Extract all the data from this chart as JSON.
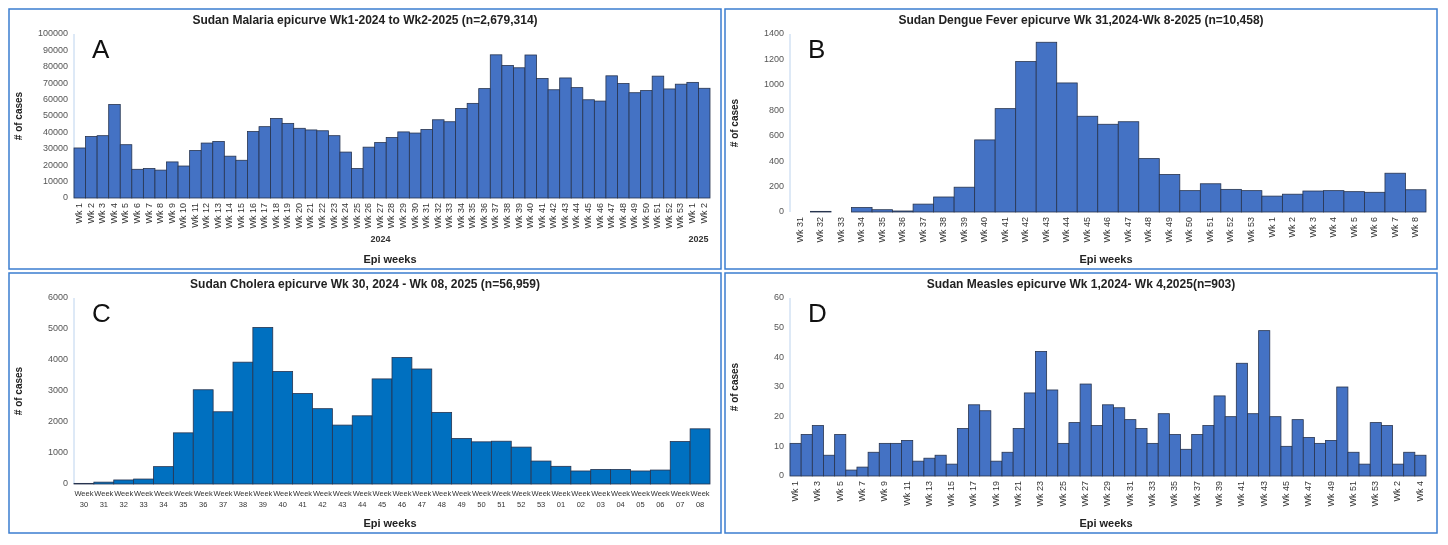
{
  "chart_data": [
    {
      "type": "bar",
      "title": "Sudan Malaria epicurve Wk1-2024 to Wk2-2025 (n=2,679,314)",
      "xlabel": "Epi weeks",
      "ylabel": "# of cases",
      "color": "#4472c4",
      "ylim": [
        0,
        100000
      ],
      "yticks": [
        0,
        10000,
        20000,
        30000,
        40000,
        50000,
        60000,
        70000,
        80000,
        90000,
        100000
      ],
      "annotations": [
        "A",
        "2024",
        "2025"
      ],
      "categories": [
        "Wk 1",
        "Wk 2",
        "Wk 3",
        "Wk 4",
        "Wk 5",
        "Wk 6",
        "Wk 7",
        "Wk 8",
        "Wk 9",
        "Wk 10",
        "Wk 11",
        "Wk 12",
        "Wk 13",
        "Wk 14",
        "Wk 15",
        "Wk 16",
        "Wk 17",
        "Wk 18",
        "Wk 19",
        "Wk 20",
        "Wk 21",
        "Wk 22",
        "Wk 23",
        "Wk 24",
        "Wk 25",
        "Wk 26",
        "Wk 27",
        "Wk 28",
        "Wk 29",
        "Wk 30",
        "Wk 31",
        "Wk 32",
        "Wk 33",
        "Wk 34",
        "Wk 35",
        "Wk 36",
        "Wk 37",
        "Wk 38",
        "Wk 39",
        "Wk 40",
        "Wk 41",
        "Wk 42",
        "Wk 43",
        "Wk 44",
        "Wk 45",
        "Wk 46",
        "Wk 47",
        "Wk 48",
        "Wk 49",
        "Wk 50",
        "Wk 51",
        "Wk 52",
        "Wk 53",
        "Wk 1",
        "Wk 2"
      ],
      "values": [
        30500,
        37500,
        38000,
        57000,
        32500,
        17500,
        18000,
        17000,
        22000,
        19500,
        29000,
        33500,
        34500,
        25500,
        23000,
        40500,
        43500,
        48500,
        45500,
        42500,
        41500,
        41000,
        38000,
        28000,
        18000,
        31000,
        33800,
        36900,
        40300,
        39600,
        41800,
        47700,
        46500,
        54600,
        57700,
        66700,
        87300,
        80800,
        79400,
        87200,
        72900,
        66000,
        73200,
        67300,
        59900,
        59100,
        74500,
        69800,
        64200,
        65500,
        74300,
        66500,
        69400,
        70500,
        66900
      ]
    },
    {
      "type": "bar",
      "title": "Sudan Dengue Fever epicurve Wk 31,2024-Wk 8-2025 (n=10,458)",
      "xlabel": "Epi weeks",
      "ylabel": "# of cases",
      "color": "#4472c4",
      "ylim": [
        0,
        1400
      ],
      "yticks": [
        0,
        200,
        400,
        600,
        800,
        1000,
        1200,
        1400
      ],
      "annotations": [
        "B"
      ],
      "categories": [
        "Wk 31",
        "Wk 32",
        "Wk 33",
        "Wk 34",
        "Wk 35",
        "Wk 36",
        "Wk 37",
        "Wk 38",
        "Wk 39",
        "Wk 40",
        "Wk 41",
        "Wk 42",
        "Wk 43",
        "Wk 44",
        "Wk 45",
        "Wk 46",
        "Wk 47",
        "Wk 48",
        "Wk 49",
        "Wk 50",
        "Wk 51",
        "Wk 52",
        "Wk 53",
        "Wk 1",
        "Wk 2",
        "Wk 3",
        "Wk 4",
        "Wk 5",
        "Wk 6",
        "Wk 7",
        "Wk 8"
      ],
      "values": [
        0,
        5,
        0,
        35,
        18,
        8,
        62,
        118,
        195,
        567,
        813,
        1183,
        1335,
        1015,
        753,
        690,
        710,
        420,
        295,
        168,
        222,
        178,
        168,
        125,
        140,
        165,
        168,
        160,
        155,
        305,
        175
      ]
    },
    {
      "type": "bar",
      "title": "Sudan Cholera epicurve Wk 30, 2024 - Wk 08, 2025 (n=56,959)",
      "xlabel": "Epi weeks",
      "ylabel": "# of cases",
      "color": "#0070c0",
      "ylim": [
        0,
        6000
      ],
      "yticks": [
        0,
        1000,
        2000,
        3000,
        4000,
        5000,
        6000
      ],
      "annotations": [
        "C"
      ],
      "categories": [
        "Week\n30",
        "Week\n31",
        "Week\n32",
        "Week\n33",
        "Week\n34",
        "Week\n35",
        "Week\n36",
        "Week\n37",
        "Week\n38",
        "Week\n39",
        "Week\n40",
        "Week\n41",
        "Week\n42",
        "Week\n43",
        "Week\n44",
        "Week\n45",
        "Week\n46",
        "Week\n47",
        "Week\n48",
        "Week\n49",
        "Week\n50",
        "Week\n51",
        "Week\n52",
        "Week\n53",
        "Week\n01",
        "Week\n02",
        "Week\n03",
        "Week\n04",
        "Week\n05",
        "Week\n06",
        "Week\n07",
        "Week\n08"
      ],
      "values": [
        20,
        60,
        130,
        160,
        560,
        1650,
        3040,
        2330,
        3930,
        5050,
        3630,
        2920,
        2430,
        1900,
        2200,
        3390,
        4080,
        3710,
        2310,
        1470,
        1360,
        1380,
        1190,
        740,
        570,
        420,
        470,
        470,
        420,
        450,
        1370,
        1780
      ]
    },
    {
      "type": "bar",
      "title": "Sudan Measles epicurve Wk 1,2024- Wk 4,2025(n=903)",
      "xlabel": "Epi weeks",
      "ylabel": "# of cases",
      "color": "#4472c4",
      "ylim": [
        0,
        60
      ],
      "yticks": [
        0,
        10,
        20,
        30,
        40,
        50,
        60
      ],
      "annotations": [
        "D"
      ],
      "categories": [
        "Wk 1",
        null,
        "Wk 3",
        null,
        "Wk 5",
        null,
        "Wk 7",
        null,
        "Wk 9",
        null,
        "Wk 11",
        null,
        "Wk 13",
        null,
        "Wk 15",
        null,
        "Wk 17",
        null,
        "Wk 19",
        null,
        "Wk 21",
        null,
        "Wk 23",
        null,
        "Wk 25",
        null,
        "Wk 27",
        null,
        "Wk 29",
        null,
        "Wk 31",
        null,
        "Wk 33",
        null,
        "Wk 35",
        null,
        "Wk 37",
        null,
        "Wk 39",
        null,
        "Wk 41",
        null,
        "Wk 43",
        null,
        "Wk 45",
        null,
        "Wk 47",
        null,
        "Wk 49",
        null,
        "Wk 51",
        null,
        "Wk 53",
        null,
        "Wk 2",
        null,
        "Wk 4"
      ],
      "values": [
        11,
        14,
        17,
        7,
        14,
        2,
        3,
        8,
        11,
        11,
        12,
        5,
        6,
        7,
        4,
        16,
        24,
        22,
        5,
        8,
        16,
        28,
        42,
        29,
        11,
        18,
        31,
        17,
        24,
        23,
        19,
        16,
        11,
        21,
        14,
        9,
        14,
        17,
        27,
        20,
        38,
        21,
        49,
        20,
        10,
        19,
        13,
        11,
        12,
        30,
        8,
        4,
        18,
        17,
        4,
        8,
        7
      ]
    }
  ]
}
